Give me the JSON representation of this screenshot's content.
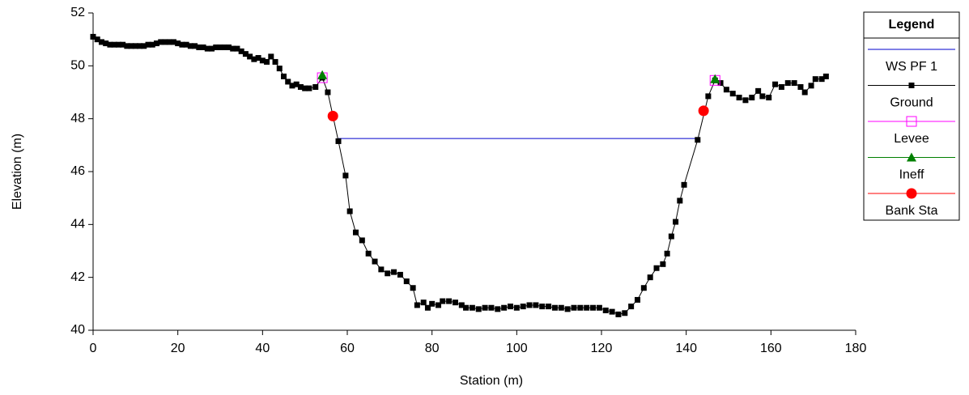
{
  "chart_data": {
    "type": "line",
    "x_label": "Station (m)",
    "y_label": "Elevation (m)",
    "xlim": [
      0,
      180
    ],
    "xticks": [
      0,
      20,
      40,
      60,
      80,
      100,
      120,
      140,
      160,
      180
    ],
    "ylim": [
      40,
      52
    ],
    "yticks": [
      40,
      42,
      44,
      46,
      48,
      50,
      52
    ],
    "legend_title": "Legend",
    "legend": "right",
    "series": [
      {
        "name": "WS PF 1",
        "color": "#0000cc",
        "line": true,
        "marker": "none",
        "x": [
          57.9,
          142.7
        ],
        "values": [
          47.25,
          47.25
        ]
      },
      {
        "name": "Ground",
        "color": "#000000",
        "line": true,
        "marker": "square",
        "x": [
          0,
          1,
          2,
          3,
          4,
          5,
          6,
          7,
          8,
          9,
          10,
          11,
          12,
          13,
          14,
          15,
          16,
          17,
          18,
          19,
          20,
          21,
          22,
          23,
          24,
          25,
          26,
          27,
          28,
          29,
          30,
          31,
          32,
          33,
          34,
          35,
          36,
          37,
          38,
          39,
          40,
          41,
          42,
          43,
          44,
          45,
          46,
          47,
          48,
          49,
          50,
          51,
          52.5,
          54.1,
          55.4,
          57.9,
          59.6,
          60.6,
          62,
          63.5,
          65,
          66.5,
          68,
          69.5,
          71,
          72.5,
          74,
          75.5,
          76.5,
          78,
          79,
          80,
          81.5,
          82.5,
          84,
          85.5,
          87,
          88,
          89.5,
          91,
          92.5,
          94,
          95.5,
          97,
          98.5,
          100,
          101.5,
          103,
          104.5,
          106,
          107.5,
          109,
          110.5,
          112,
          113.5,
          115,
          116.5,
          118,
          119.5,
          121,
          122.5,
          124,
          125.5,
          127,
          128.5,
          130,
          131.5,
          133,
          134.5,
          135.5,
          136.5,
          137.5,
          138.5,
          139.5,
          142.7,
          145.2,
          146.8,
          148.1,
          149.5,
          151,
          152.5,
          154,
          155.5,
          157,
          158,
          159.5,
          161,
          162.5,
          164,
          165.5,
          167,
          168,
          169.5,
          170.5,
          172,
          173
        ],
        "values": [
          51.1,
          51.0,
          50.9,
          50.85,
          50.8,
          50.8,
          50.8,
          50.8,
          50.75,
          50.75,
          50.75,
          50.75,
          50.75,
          50.8,
          50.8,
          50.85,
          50.9,
          50.9,
          50.9,
          50.9,
          50.85,
          50.8,
          50.8,
          50.75,
          50.75,
          50.7,
          50.7,
          50.65,
          50.65,
          50.7,
          50.7,
          50.7,
          50.7,
          50.65,
          50.65,
          50.55,
          50.45,
          50.35,
          50.25,
          50.3,
          50.2,
          50.15,
          50.35,
          50.15,
          49.9,
          49.6,
          49.4,
          49.25,
          49.3,
          49.2,
          49.15,
          49.15,
          49.2,
          49.55,
          49.0,
          47.15,
          45.85,
          44.5,
          43.7,
          43.4,
          42.9,
          42.6,
          42.3,
          42.15,
          42.2,
          42.1,
          41.85,
          41.6,
          40.95,
          41.05,
          40.85,
          41.0,
          40.95,
          41.1,
          41.1,
          41.05,
          40.95,
          40.85,
          40.85,
          40.8,
          40.85,
          40.85,
          40.8,
          40.85,
          40.9,
          40.85,
          40.9,
          40.95,
          40.95,
          40.9,
          40.9,
          40.85,
          40.85,
          40.8,
          40.85,
          40.85,
          40.85,
          40.85,
          40.85,
          40.75,
          40.7,
          40.6,
          40.65,
          40.9,
          41.15,
          41.6,
          42.0,
          42.35,
          42.5,
          42.9,
          43.55,
          44.1,
          44.9,
          45.5,
          47.2,
          48.85,
          49.45,
          49.35,
          49.1,
          48.95,
          48.8,
          48.7,
          48.8,
          49.05,
          48.85,
          48.8,
          49.3,
          49.2,
          49.35,
          49.35,
          49.2,
          49.0,
          49.25,
          49.5,
          49.5,
          49.6
        ]
      },
      {
        "name": "Levee",
        "color": "#ff00ff",
        "line": false,
        "marker": "open-square",
        "x": [
          54.1,
          146.8
        ],
        "values": [
          49.55,
          49.45
        ]
      },
      {
        "name": "Ineff",
        "color": "#008000",
        "line": false,
        "marker": "triangle",
        "x": [
          54.1,
          146.8
        ],
        "values": [
          49.65,
          49.5
        ]
      },
      {
        "name": "Bank Sta",
        "color": "#ff0000",
        "line": false,
        "marker": "circle",
        "x": [
          56.6,
          144.1
        ],
        "values": [
          48.1,
          48.3
        ]
      }
    ]
  }
}
